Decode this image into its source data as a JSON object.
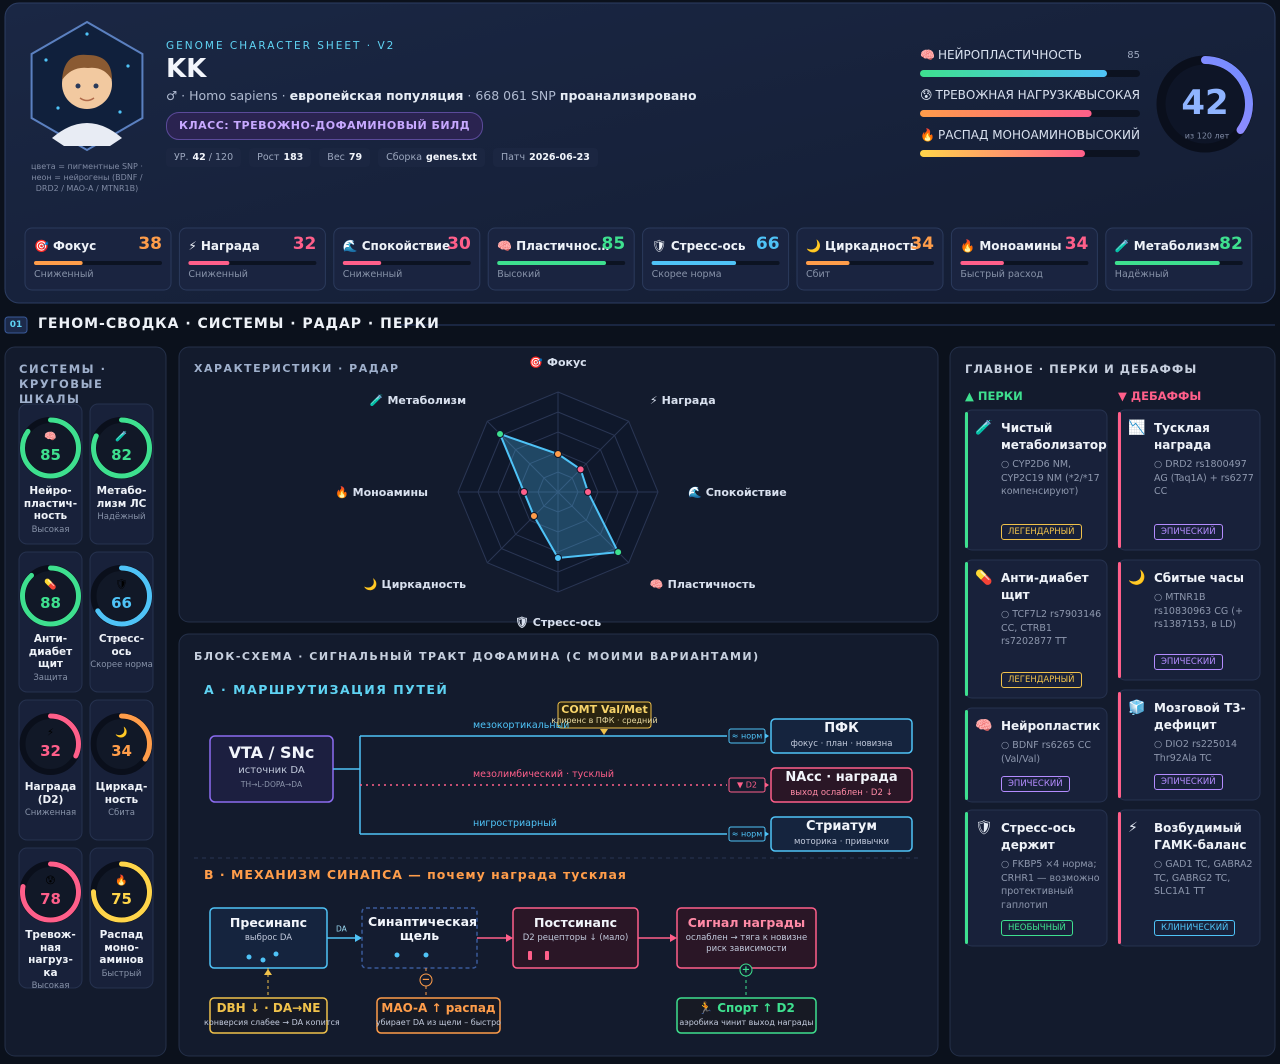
{
  "header": {
    "avatar_caption": "цвета = пигментные SNP · неон = нейрогены (BDNF / DRD2 / MAO-A / MTNR1B)",
    "kicker": "GENOME CHARACTER SHEET · V2",
    "name": "KK",
    "subtitle": [
      "♂ · Homo sapiens ·",
      "европейская популяция",
      "· 668 061 SNP",
      "проанализировано"
    ],
    "class_badge": "КЛАСС: ТРЕВОЖНО-ДОФАМИНОВЫЙ БИЛД",
    "chips": [
      {
        "label": "УР.",
        "value": 42,
        "suffix": "/ 120"
      },
      {
        "label": "Рост",
        "value": 183
      },
      {
        "label": "Вес",
        "value": 79
      },
      {
        "label": "Сборка",
        "value": "genes.txt"
      },
      {
        "label": "Патч",
        "value": "2026-06-23"
      }
    ],
    "meters": [
      {
        "icon": "🧠",
        "label": "НЕЙРОПЛАСТИЧНОСТЬ",
        "value": 85,
        "colors": [
          "#3ee08f",
          "#4fc3f7"
        ]
      },
      {
        "icon": "😰",
        "label": "ТРЕВОЖНАЯ НАГРУЗКА",
        "level": "ВЫСОКАЯ",
        "value": 78,
        "colors": [
          "#ff9d4a",
          "#ff5f8a"
        ]
      },
      {
        "icon": "🔥",
        "label": "РАСПАД МОНОАМИНОВ",
        "level": "ВЫСОКИЙ",
        "value": 75,
        "colors": [
          "#ffd54a",
          "#ff5f8a"
        ]
      }
    ],
    "level_ring": {
      "value": 42,
      "max": 120,
      "label": "из 120 лет"
    }
  },
  "scale": [
    0,
    100
  ],
  "stats": [
    {
      "icon": "🎯",
      "name": "Фокус",
      "value": 38,
      "note": "Сниженный",
      "color": "#ff9d4a"
    },
    {
      "icon": "⚡",
      "name": "Награда",
      "value": 32,
      "note": "Сниженный",
      "color": "#ff5f8a"
    },
    {
      "icon": "🌊",
      "name": "Спокойствие",
      "value": 30,
      "note": "Сниженный",
      "color": "#ff5f8a"
    },
    {
      "icon": "🧠",
      "name": "Пластичнос…",
      "value": 85,
      "note": "Высокий",
      "color": "#3ee08f"
    },
    {
      "icon": "🛡",
      "name": "Стресс-ось",
      "value": 66,
      "note": "Скорее норма",
      "color": "#4fc3f7"
    },
    {
      "icon": "🌙",
      "name": "Циркадность",
      "value": 34,
      "note": "Сбит",
      "color": "#ff9d4a"
    },
    {
      "icon": "🔥",
      "name": "Моноамины",
      "value": 34,
      "note": "Быстрый расход",
      "color": "#ff5f8a"
    },
    {
      "icon": "🧪",
      "name": "Метаболизм",
      "value": 82,
      "note": "Надёжный",
      "color": "#3ee08f"
    }
  ],
  "section": {
    "number": "01",
    "title": "ГЕНОМ-СВОДКА · СИСТЕМЫ · РАДАР · ПЕРКИ"
  },
  "systems": {
    "title": "СИСТЕМЫ · КРУГОВЫЕ ШКАЛЫ",
    "gauges": [
      {
        "icon": "🧠",
        "value": 85,
        "name": "Нейро-пластич-ность",
        "note": "Высокая",
        "color": "#3ee08f"
      },
      {
        "icon": "🧪",
        "value": 82,
        "name": "Метабо-лизм ЛС",
        "note": "Надёжный",
        "color": "#3ee08f"
      },
      {
        "icon": "💊",
        "value": 88,
        "name": "Анти-диабет щит",
        "note": "Защита",
        "color": "#3ee08f"
      },
      {
        "icon": "🛡",
        "value": 66,
        "name": "Стресс-ось",
        "note": "Скорее норма",
        "color": "#4fc3f7"
      },
      {
        "icon": "⚡",
        "value": 32,
        "name": "Награда (D2)",
        "note": "Сниженная",
        "color": "#ff5f8a"
      },
      {
        "icon": "🌙",
        "value": 34,
        "name": "Циркад-ность",
        "note": "Сбита",
        "color": "#ff9d4a"
      },
      {
        "icon": "😰",
        "value": 78,
        "name": "Тревож-ная нагруз-ка",
        "note": "Высокая",
        "color": "#ff5f8a"
      },
      {
        "icon": "🔥",
        "value": 75,
        "name": "Распад моно-аминов",
        "note": "Быстрый",
        "color": "#ffd54a"
      }
    ]
  },
  "radar": {
    "title": "ХАРАКТЕРИСТИКИ · РАДАР",
    "icons": [
      "🎯",
      "⚡",
      "🌊",
      "🧠",
      "🛡",
      "🌙",
      "🔥",
      "🧪"
    ],
    "categories": [
      "Фокус",
      "Награда",
      "Спокойствие",
      "Пластичность",
      "Стресс-ось",
      "Циркадность",
      "Моноамины",
      "Метаболизм"
    ],
    "values": [
      38,
      32,
      30,
      85,
      66,
      34,
      34,
      82
    ],
    "colors": [
      "#ff9d4a",
      "#ff5f8a",
      "#ff5f8a",
      "#3ee08f",
      "#4fc3f7",
      "#ff9d4a",
      "#ff5f8a",
      "#3ee08f"
    ],
    "rings": 5,
    "color": "#4fc3f7"
  },
  "flow": {
    "title": "БЛОК-СХЕМА · СИГНАЛЬНЫЙ ТРАКТ ДОФАМИНА (С МОИМИ ВАРИАНТАМИ)",
    "section_a": "A · МАРШРУТИЗАЦИЯ ПУТЕЙ",
    "source": {
      "title": "VTA / SNc",
      "sub": "источник DA",
      "note": "TH→L-DOPA→DA"
    },
    "comt": {
      "title": "COMT Val/Met",
      "sub": "клиренс в ПФК · средний"
    },
    "routes": [
      {
        "label": "мезокортикальный",
        "tag": "≈ норм",
        "target": "ПФК",
        "sub": "фокус · план · новизна",
        "color": "#4fc3f7",
        "dotted": false
      },
      {
        "label": "мезолимбический · тусклый",
        "tag": "▼ D2",
        "target": "NAcc · награда",
        "sub": "выход ослаблен · D2 ↓",
        "color": "#ff5f8a",
        "dotted": true
      },
      {
        "label": "нигростриарный",
        "tag": "≈ норм",
        "target": "Стриатум",
        "sub": "моторика · привычки",
        "color": "#4fc3f7",
        "dotted": false
      }
    ],
    "section_b": "B · МЕХАНИЗМ СИНАПСА — почему награда тусклая",
    "edge_label": "DA",
    "nodes": [
      {
        "title": "Пресинапс",
        "sub": "выброс DA",
        "color": "#4fc3f7"
      },
      {
        "title": "Синаптическая щель",
        "color": "#3a5a9a"
      },
      {
        "title": "Постсинапс",
        "sub": "D2 рецепторы ↓ (мало)",
        "color": "#ff5f8a"
      },
      {
        "title": "Сигнал награды",
        "sub": "ослаблен → тяга к новизне риск зависимости",
        "color": "#ff5f8a"
      }
    ],
    "modifiers": [
      {
        "title": "DBH ↓ · DA→NE",
        "sub": "конверсия слабее → DA копится",
        "color": "#f0c24b"
      },
      {
        "title": "MAO-A ↑ распад",
        "sub": "убирает DA из щели – быстро",
        "sign": "−",
        "color": "#ff9d4a"
      },
      {
        "title": "🏃 Спорт ↑ D2",
        "sub": "аэробика чинит выход награды",
        "sign": "+",
        "color": "#3ee08f"
      }
    ]
  },
  "perks": {
    "title": "ГЛАВНОЕ · ПЕРКИ И ДЕБАФФЫ",
    "perks_heading": "▲ ПЕРКИ",
    "debuffs_heading": "▼ ДЕБАФФЫ",
    "perks": [
      {
        "icon": "🧪",
        "title": "Чистый метаболизатор",
        "desc": "○ CYP2D6 NM, CYP2C19 NM (*2/*17 компенсируют)",
        "rarity": "ЛЕГЕНДАРНЫЙ",
        "rarity_color": "#f0c24b"
      },
      {
        "icon": "💊",
        "title": "Анти-диабет щит",
        "desc": "○ TCF7L2 rs7903146 CC, CTRB1 rs7202877 TT",
        "rarity": "ЛЕГЕНДАРНЫЙ",
        "rarity_color": "#f0c24b"
      },
      {
        "icon": "🧠",
        "title": "Нейропластик",
        "desc": "○ BDNF rs6265 CC (Val/Val)",
        "rarity": "ЭПИЧЕСКИЙ",
        "rarity_color": "#b48cff"
      },
      {
        "icon": "🛡",
        "title": "Стресс-ось держит",
        "desc": "○ FKBP5 ×4 норма; CRHR1 — возможно протективный гаплотип",
        "rarity": "НЕОБЫЧНЫЙ",
        "rarity_color": "#3ee08f"
      }
    ],
    "debuffs": [
      {
        "icon": "📉",
        "title": "Тусклая награда",
        "desc": "○ DRD2 rs1800497 AG (Taq1A) + rs6277 CC",
        "rarity": "ЭПИЧЕСКИЙ",
        "rarity_color": "#b48cff"
      },
      {
        "icon": "🌙",
        "title": "Сбитые часы",
        "desc": "○ MTNR1B rs10830963 CG (+ rs1387153, в LD)",
        "rarity": "ЭПИЧЕСКИЙ",
        "rarity_color": "#b48cff"
      },
      {
        "icon": "🧊",
        "title": "Мозговой T3-дефицит",
        "desc": "○ DIO2 rs225014 Thr92Ala TC",
        "rarity": "ЭПИЧЕСКИЙ",
        "rarity_color": "#b48cff"
      },
      {
        "icon": "⚡",
        "title": "Возбудимый ГАМК-баланс",
        "desc": "○ GAD1 TC, GABRA2 TC, GABRG2 TC, SLC1A1 TT",
        "rarity": "КЛИНИЧЕСКИЙ",
        "rarity_color": "#4fc3f7"
      }
    ]
  }
}
